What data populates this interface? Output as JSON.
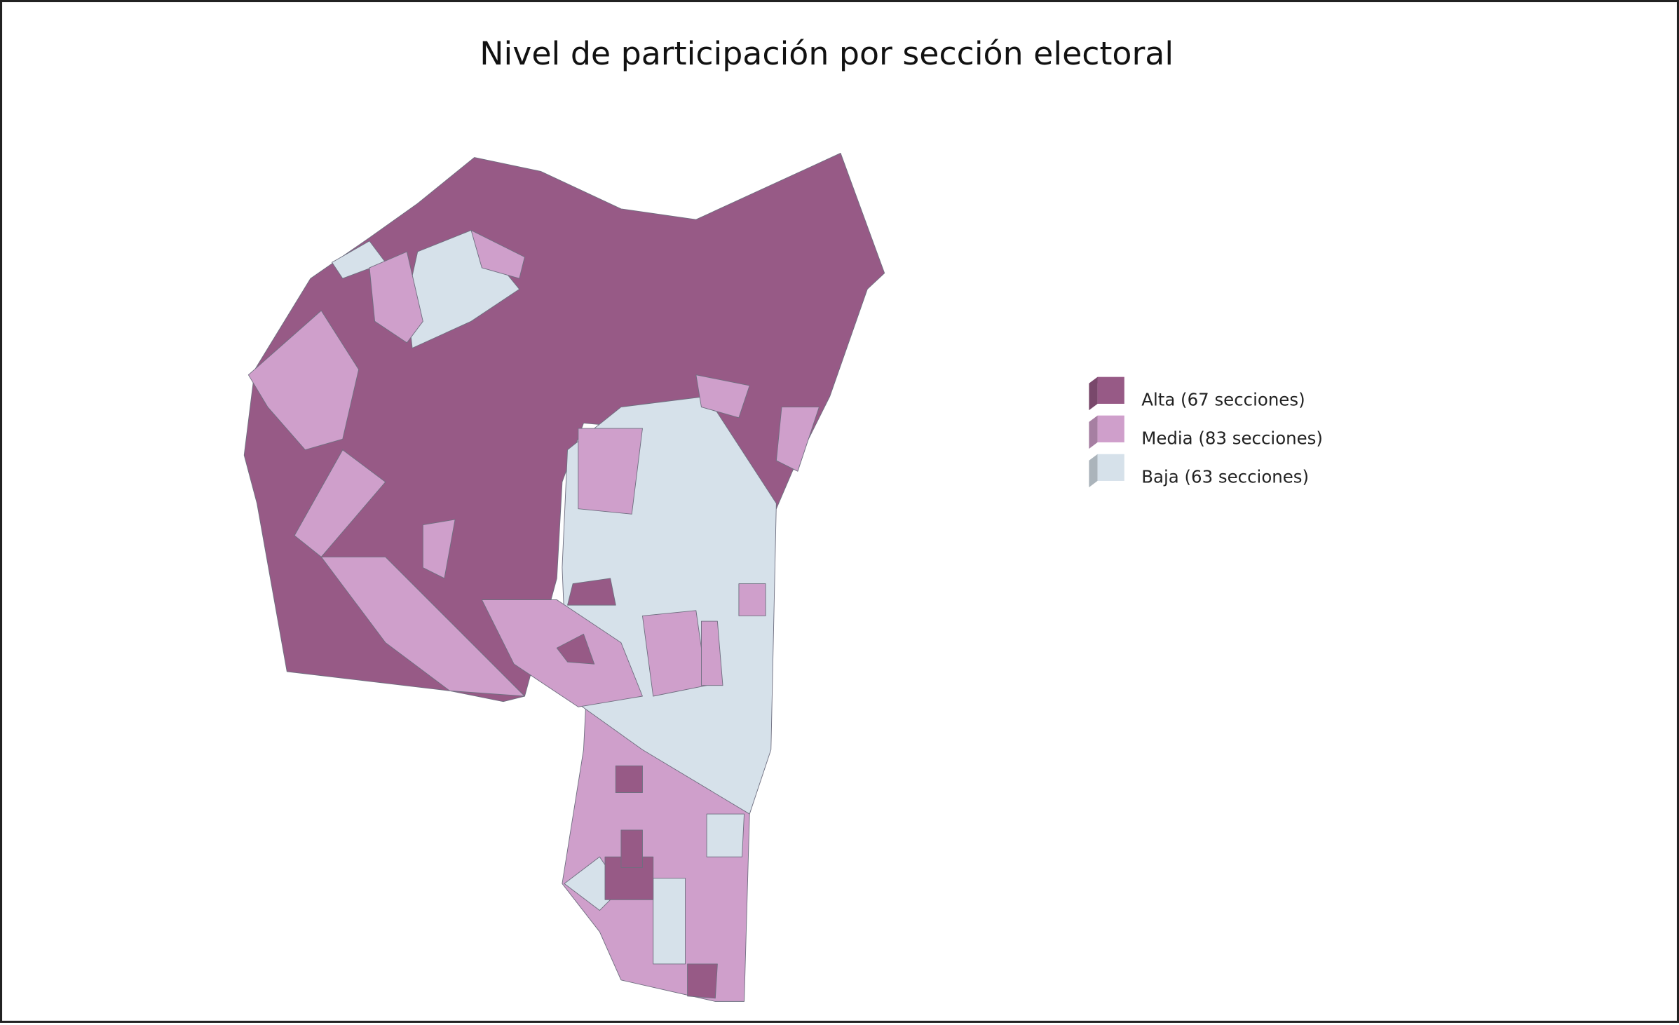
{
  "title": "Nivel de participación por sección electoral",
  "legend": [
    {
      "label": "Alta (67 secciones)",
      "color": "#975a86"
    },
    {
      "label": "Media (83 secciones)",
      "color": "#cf9fcb"
    },
    {
      "label": "Baja (63 secciones)",
      "color": "#d6e1ea"
    }
  ]
}
